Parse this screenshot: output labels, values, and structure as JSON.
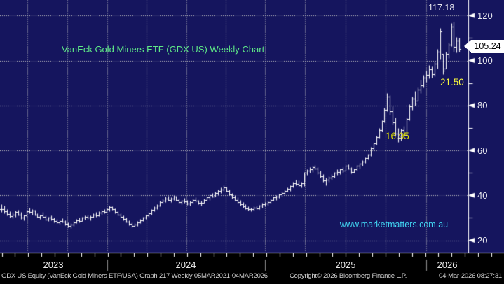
{
  "chart": {
    "title": "VanEck Gold Miners ETF (GDX US) Weekly Chart",
    "watermark": "www.marketmatters.com.au",
    "last_price_label": "105.24"
  },
  "annotations": {
    "peak": "117.18",
    "upper_yellow": "21.50",
    "lower_yellow": "16.95"
  },
  "y_axis": {
    "tick_labels": [
      "120",
      "100",
      "80",
      "60",
      "40",
      "20"
    ]
  },
  "x_axis": {
    "year_labels": [
      "2023",
      "2024",
      "2025",
      "2026"
    ]
  },
  "footer": {
    "left": "GDX US Equity (VanEck Gold Miners ETF/USA) Graph 217 Weekly 05MAR2021-04MAR2026",
    "center": "Copyright© 2026 Bloomberg Finance L.P.",
    "right": "04-Mar-2026 08:27:31"
  },
  "colors": {
    "background_navy": "#15155e",
    "grid_dots": "#c4c4c4",
    "bar_white": "#ffffff",
    "axis_white": "#ffffff",
    "title_green": "#5ee887",
    "annotation_yellow": "#fafa3c",
    "annotation_yellow_dim": "#dede00",
    "label_white": "#e6e6ee",
    "watermark_cyan": "#41d4f1",
    "last_price_bg": "#ffffff",
    "last_price_fg": "#000000",
    "bottom_strip_black": "#000000",
    "year_separator_gray": "#8f8f8f"
  },
  "chart_data": {
    "type": "bar",
    "subtype": "hlc-weekly-bars",
    "title": "VanEck Gold Miners ETF (GDX US) Weekly Chart",
    "xlabel": "",
    "ylabel": "",
    "ylim": [
      14,
      127
    ],
    "yticks": [
      20,
      40,
      60,
      80,
      100,
      120
    ],
    "y_minor_ticks": [
      30,
      50,
      70,
      90,
      110
    ],
    "grid": "dotted",
    "x_years": [
      "2023",
      "2024",
      "2025",
      "2026"
    ],
    "year_start_week_indices": [
      38,
      95,
      153
    ],
    "last_price": 105.24,
    "peak_price": 117.18,
    "bars_hlc": [
      [
        36.0,
        32.5,
        34.0
      ],
      [
        35.5,
        32.0,
        33.0
      ],
      [
        34.0,
        31.0,
        31.8
      ],
      [
        33.0,
        30.2,
        30.8
      ],
      [
        32.5,
        29.8,
        31.5
      ],
      [
        33.2,
        30.5,
        32.5
      ],
      [
        33.5,
        31.0,
        31.5
      ],
      [
        32.5,
        29.5,
        30.0
      ],
      [
        31.5,
        29.0,
        31.0
      ],
      [
        33.5,
        30.5,
        33.0
      ],
      [
        34.5,
        32.0,
        32.5
      ],
      [
        33.8,
        31.5,
        33.3
      ],
      [
        33.5,
        31.0,
        31.5
      ],
      [
        32.0,
        30.0,
        30.5
      ],
      [
        31.5,
        29.5,
        31.0
      ],
      [
        32.5,
        30.0,
        30.3
      ],
      [
        31.0,
        28.8,
        29.3
      ],
      [
        30.5,
        28.5,
        30.0
      ],
      [
        31.0,
        29.0,
        29.5
      ],
      [
        30.0,
        28.0,
        28.5
      ],
      [
        29.5,
        27.5,
        28.0
      ],
      [
        29.0,
        27.2,
        28.6
      ],
      [
        29.8,
        27.8,
        28.2
      ],
      [
        28.8,
        26.8,
        27.2
      ],
      [
        28.0,
        25.8,
        26.3
      ],
      [
        27.5,
        25.3,
        27.0
      ],
      [
        28.5,
        26.5,
        28.0
      ],
      [
        29.5,
        27.5,
        29.0
      ],
      [
        30.0,
        28.0,
        28.5
      ],
      [
        30.5,
        28.5,
        30.0
      ],
      [
        31.0,
        29.2,
        30.5
      ],
      [
        31.5,
        29.5,
        30.0
      ],
      [
        31.0,
        29.0,
        30.5
      ],
      [
        32.0,
        30.0,
        31.5
      ],
      [
        32.5,
        30.5,
        31.0
      ],
      [
        32.8,
        30.8,
        32.3
      ],
      [
        33.5,
        31.5,
        33.0
      ],
      [
        34.0,
        32.0,
        32.5
      ],
      [
        34.5,
        32.5,
        34.0
      ],
      [
        35.3,
        33.0,
        34.8
      ],
      [
        35.0,
        33.5,
        34.0
      ],
      [
        34.3,
        32.0,
        32.5
      ],
      [
        33.0,
        31.0,
        31.3
      ],
      [
        32.0,
        30.0,
        30.3
      ],
      [
        31.0,
        29.0,
        29.5
      ],
      [
        30.0,
        27.8,
        28.2
      ],
      [
        29.0,
        26.8,
        27.2
      ],
      [
        27.8,
        25.8,
        26.3
      ],
      [
        27.5,
        26.0,
        27.0
      ],
      [
        28.5,
        26.5,
        28.0
      ],
      [
        29.5,
        27.5,
        29.0
      ],
      [
        30.5,
        28.5,
        30.0
      ],
      [
        31.5,
        29.5,
        31.0
      ],
      [
        32.5,
        30.5,
        32.0
      ],
      [
        34.0,
        31.5,
        33.5
      ],
      [
        35.0,
        33.0,
        34.5
      ],
      [
        36.0,
        34.0,
        35.5
      ],
      [
        37.5,
        35.0,
        37.0
      ],
      [
        38.5,
        36.5,
        37.5
      ],
      [
        39.3,
        37.0,
        38.5
      ],
      [
        39.8,
        37.5,
        38.0
      ],
      [
        39.0,
        37.0,
        38.5
      ],
      [
        40.2,
        38.0,
        39.5
      ],
      [
        39.8,
        37.5,
        38.0
      ],
      [
        38.5,
        36.5,
        37.0
      ],
      [
        38.0,
        36.0,
        37.5
      ],
      [
        38.8,
        36.8,
        37.2
      ],
      [
        38.0,
        35.8,
        36.2
      ],
      [
        37.5,
        35.5,
        37.0
      ],
      [
        38.5,
        36.5,
        38.0
      ],
      [
        39.0,
        37.0,
        37.5
      ],
      [
        38.0,
        36.0,
        36.5
      ],
      [
        37.5,
        35.5,
        36.8
      ],
      [
        38.5,
        36.5,
        38.0
      ],
      [
        39.5,
        37.5,
        39.0
      ],
      [
        40.5,
        38.0,
        40.0
      ],
      [
        41.0,
        39.0,
        39.5
      ],
      [
        41.5,
        39.5,
        41.0
      ],
      [
        42.5,
        40.0,
        42.0
      ],
      [
        43.5,
        41.0,
        42.5
      ],
      [
        44.3,
        42.0,
        43.5
      ],
      [
        43.8,
        41.5,
        42.0
      ],
      [
        42.5,
        40.0,
        40.5
      ],
      [
        41.0,
        38.5,
        39.0
      ],
      [
        40.0,
        37.5,
        38.0
      ],
      [
        39.0,
        36.5,
        37.0
      ],
      [
        38.0,
        35.5,
        36.0
      ],
      [
        37.0,
        34.5,
        35.0
      ],
      [
        36.0,
        33.8,
        34.3
      ],
      [
        35.0,
        33.2,
        33.8
      ],
      [
        34.5,
        33.0,
        34.0
      ],
      [
        35.0,
        33.3,
        34.5
      ],
      [
        35.5,
        33.8,
        34.2
      ],
      [
        35.8,
        34.0,
        35.3
      ],
      [
        36.5,
        34.5,
        36.0
      ],
      [
        37.0,
        35.0,
        36.3
      ],
      [
        37.5,
        35.5,
        37.0
      ],
      [
        38.5,
        36.5,
        38.0
      ],
      [
        39.5,
        37.5,
        39.0
      ],
      [
        40.0,
        38.0,
        39.3
      ],
      [
        40.8,
        38.8,
        40.3
      ],
      [
        41.5,
        39.5,
        41.0
      ],
      [
        42.5,
        40.5,
        42.0
      ],
      [
        43.5,
        41.5,
        42.8
      ],
      [
        44.5,
        42.0,
        44.0
      ],
      [
        46.0,
        43.5,
        45.5
      ],
      [
        47.0,
        44.5,
        45.0
      ],
      [
        46.5,
        44.0,
        44.5
      ],
      [
        46.0,
        43.5,
        45.5
      ],
      [
        50.5,
        44.0,
        50.0
      ],
      [
        51.5,
        49.0,
        51.0
      ],
      [
        52.5,
        50.0,
        51.5
      ],
      [
        53.0,
        50.5,
        52.5
      ],
      [
        53.6,
        51.5,
        52.0
      ],
      [
        52.5,
        49.5,
        50.0
      ],
      [
        51.0,
        48.0,
        48.5
      ],
      [
        49.5,
        46.0,
        46.5
      ],
      [
        48.0,
        44.3,
        47.0
      ],
      [
        48.5,
        46.0,
        48.0
      ],
      [
        49.5,
        47.0,
        48.5
      ],
      [
        50.5,
        48.0,
        50.0
      ],
      [
        51.5,
        49.0,
        50.5
      ],
      [
        52.0,
        49.5,
        51.5
      ],
      [
        52.5,
        50.0,
        51.0
      ],
      [
        53.5,
        51.0,
        53.0
      ],
      [
        53.8,
        51.5,
        52.0
      ],
      [
        52.5,
        49.8,
        50.3
      ],
      [
        52.0,
        50.0,
        51.5
      ],
      [
        53.5,
        51.0,
        53.0
      ],
      [
        54.5,
        52.0,
        54.0
      ],
      [
        55.5,
        53.0,
        55.0
      ],
      [
        57.0,
        54.5,
        56.5
      ],
      [
        58.5,
        56.0,
        58.0
      ],
      [
        61.5,
        57.5,
        61.0
      ],
      [
        63.5,
        60.0,
        63.0
      ],
      [
        66.5,
        62.5,
        66.0
      ],
      [
        70.0,
        65.5,
        69.0
      ],
      [
        73.5,
        68.5,
        73.0
      ],
      [
        79.0,
        72.5,
        78.0
      ],
      [
        85.5,
        77.5,
        84.0
      ],
      [
        84.5,
        76.0,
        77.5
      ],
      [
        79.5,
        71.5,
        72.5
      ],
      [
        74.5,
        66.5,
        67.5
      ],
      [
        70.0,
        63.8,
        65.5
      ],
      [
        69.5,
        64.5,
        69.0
      ],
      [
        71.0,
        66.0,
        67.0
      ],
      [
        74.5,
        66.5,
        74.0
      ],
      [
        80.5,
        73.5,
        79.5
      ],
      [
        84.0,
        78.0,
        83.0
      ],
      [
        86.5,
        80.0,
        81.0
      ],
      [
        88.0,
        82.0,
        87.0
      ],
      [
        91.5,
        85.5,
        89.0
      ],
      [
        93.5,
        88.0,
        92.5
      ],
      [
        95.5,
        90.5,
        93.5
      ],
      [
        98.0,
        92.0,
        96.0
      ],
      [
        97.5,
        92.5,
        94.0
      ],
      [
        99.5,
        93.0,
        98.5
      ],
      [
        105.0,
        96.5,
        104.0
      ],
      [
        114.5,
        100.5,
        113.0
      ],
      [
        103.0,
        94.0,
        95.5
      ],
      [
        104.0,
        96.5,
        103.0
      ],
      [
        108.0,
        101.0,
        107.0
      ],
      [
        116.8,
        106.5,
        115.0
      ],
      [
        117.18,
        104.0,
        106.0
      ],
      [
        110.5,
        103.5,
        109.0
      ],
      [
        110.0,
        104.0,
        105.24
      ]
    ]
  }
}
